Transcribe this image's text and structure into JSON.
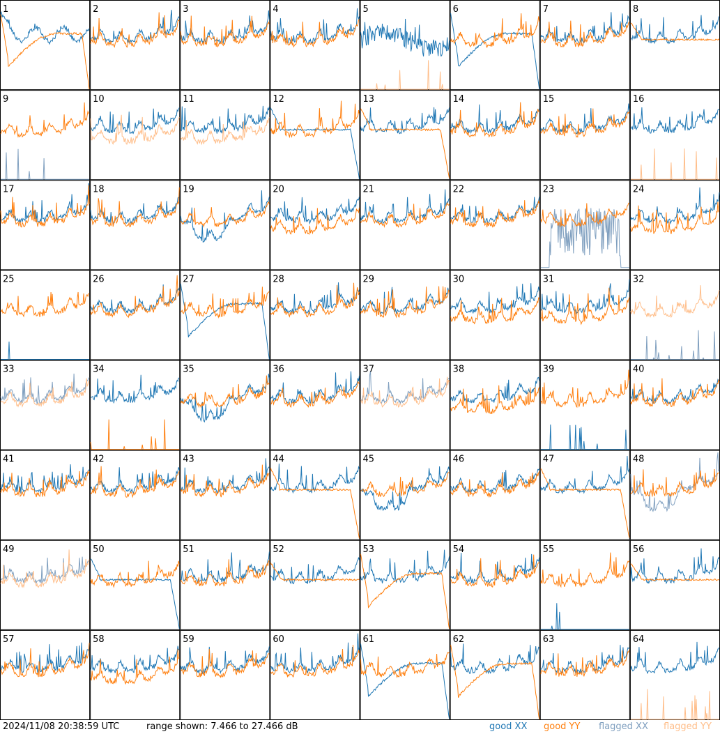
{
  "footer": {
    "timestamp": "2024/11/08 20:38:59 UTC",
    "range_text": "range shown: 7.466 to 27.466 dB",
    "legend": {
      "good_xx": "good XX",
      "good_yy": "good YY",
      "flagged_xx": "flagged XX",
      "flagged_yy": "flagged YY"
    }
  },
  "colors": {
    "good_xx": "#1f77b4",
    "good_yy": "#ff7f0e",
    "flagged_xx": "#7f9fbf",
    "flagged_yy": "#ffbe8a",
    "border": "#000000"
  },
  "chart_data": {
    "type": "line",
    "layout": "small-multiples 8x8",
    "ylim_db": [
      7.466,
      27.466
    ],
    "panels": [
      {
        "label": "1",
        "xx": "good",
        "yy": "good",
        "xx_shape": "plateau_high",
        "yy_shape": "dip_rolloff"
      },
      {
        "label": "2",
        "xx": "good",
        "yy": "good",
        "xx_shape": "normal",
        "yy_shape": "normal"
      },
      {
        "label": "3",
        "xx": "good",
        "yy": "good",
        "xx_shape": "normal",
        "yy_shape": "normal"
      },
      {
        "label": "4",
        "xx": "good",
        "yy": "good",
        "xx_shape": "normal",
        "yy_shape": "normal"
      },
      {
        "label": "5",
        "xx": "good",
        "yy": "flagged",
        "xx_shape": "low_noisy",
        "yy_shape": "spikes"
      },
      {
        "label": "6",
        "xx": "good",
        "yy": "good",
        "xx_shape": "dip_rolloff",
        "yy_shape": "normal"
      },
      {
        "label": "7",
        "xx": "good",
        "yy": "good",
        "xx_shape": "normal",
        "yy_shape": "normal"
      },
      {
        "label": "8",
        "xx": "good",
        "yy": "good",
        "xx_shape": "normal",
        "yy_shape": "plateau"
      },
      {
        "label": "9",
        "xx": "flagged",
        "yy": "good",
        "xx_shape": "spikes",
        "yy_shape": "normal"
      },
      {
        "label": "10",
        "xx": "good",
        "yy": "flagged",
        "xx_shape": "normal",
        "yy_shape": "low"
      },
      {
        "label": "11",
        "xx": "good",
        "yy": "flagged",
        "xx_shape": "normal",
        "yy_shape": "low"
      },
      {
        "label": "12",
        "xx": "good",
        "yy": "good",
        "xx_shape": "plateau_rolloff",
        "yy_shape": "normal"
      },
      {
        "label": "13",
        "xx": "good",
        "yy": "good",
        "xx_shape": "normal",
        "yy_shape": "plateau_rolloff"
      },
      {
        "label": "14",
        "xx": "good",
        "yy": "good",
        "xx_shape": "normal",
        "yy_shape": "normal"
      },
      {
        "label": "15",
        "xx": "good",
        "yy": "good",
        "xx_shape": "normal",
        "yy_shape": "normal"
      },
      {
        "label": "16",
        "xx": "good",
        "yy": "flagged",
        "xx_shape": "normal",
        "yy_shape": "spikes"
      },
      {
        "label": "17",
        "xx": "good",
        "yy": "good",
        "xx_shape": "normal",
        "yy_shape": "normal"
      },
      {
        "label": "18",
        "xx": "good",
        "yy": "good",
        "xx_shape": "normal",
        "yy_shape": "normal"
      },
      {
        "label": "19",
        "xx": "good",
        "yy": "good",
        "xx_shape": "dip",
        "yy_shape": "normal"
      },
      {
        "label": "20",
        "xx": "good",
        "yy": "good",
        "xx_shape": "normal",
        "yy_shape": "low"
      },
      {
        "label": "21",
        "xx": "good",
        "yy": "good",
        "xx_shape": "normal",
        "yy_shape": "normal"
      },
      {
        "label": "22",
        "xx": "good",
        "yy": "good",
        "xx_shape": "normal",
        "yy_shape": "normal"
      },
      {
        "label": "23",
        "xx": "flagged",
        "yy": "good",
        "xx_shape": "noise_block",
        "yy_shape": "normal"
      },
      {
        "label": "24",
        "xx": "good",
        "yy": "good",
        "xx_shape": "normal",
        "yy_shape": "low"
      },
      {
        "label": "25",
        "xx": "good",
        "yy": "good",
        "xx_shape": "spike",
        "yy_shape": "normal"
      },
      {
        "label": "26",
        "xx": "good",
        "yy": "good",
        "xx_shape": "normal",
        "yy_shape": "normal"
      },
      {
        "label": "27",
        "xx": "good",
        "yy": "good",
        "xx_shape": "dip_rolloff",
        "yy_shape": "normal"
      },
      {
        "label": "28",
        "xx": "good",
        "yy": "good",
        "xx_shape": "normal",
        "yy_shape": "normal"
      },
      {
        "label": "29",
        "xx": "good",
        "yy": "good",
        "xx_shape": "normal",
        "yy_shape": "normal"
      },
      {
        "label": "30",
        "xx": "good",
        "yy": "good",
        "xx_shape": "normal",
        "yy_shape": "low"
      },
      {
        "label": "31",
        "xx": "good",
        "yy": "good",
        "xx_shape": "normal",
        "yy_shape": "low"
      },
      {
        "label": "32",
        "xx": "flagged",
        "yy": "flagged",
        "xx_shape": "spikes",
        "yy_shape": "normal"
      },
      {
        "label": "33",
        "xx": "flagged",
        "yy": "flagged",
        "xx_shape": "normal",
        "yy_shape": "normal"
      },
      {
        "label": "34",
        "xx": "good",
        "yy": "good",
        "xx_shape": "normal",
        "yy_shape": "spikes"
      },
      {
        "label": "35",
        "xx": "good",
        "yy": "good",
        "xx_shape": "dip",
        "yy_shape": "normal"
      },
      {
        "label": "36",
        "xx": "good",
        "yy": "good",
        "xx_shape": "normal",
        "yy_shape": "normal"
      },
      {
        "label": "37",
        "xx": "flagged",
        "yy": "flagged",
        "xx_shape": "normal",
        "yy_shape": "normal"
      },
      {
        "label": "38",
        "xx": "good",
        "yy": "good",
        "xx_shape": "normal",
        "yy_shape": "low"
      },
      {
        "label": "39",
        "xx": "good",
        "yy": "good",
        "xx_shape": "spikes",
        "yy_shape": "normal"
      },
      {
        "label": "40",
        "xx": "good",
        "yy": "good",
        "xx_shape": "normal",
        "yy_shape": "normal"
      },
      {
        "label": "41",
        "xx": "good",
        "yy": "good",
        "xx_shape": "normal",
        "yy_shape": "normal"
      },
      {
        "label": "42",
        "xx": "good",
        "yy": "good",
        "xx_shape": "normal",
        "yy_shape": "normal"
      },
      {
        "label": "43",
        "xx": "good",
        "yy": "good",
        "xx_shape": "normal",
        "yy_shape": "normal"
      },
      {
        "label": "44",
        "xx": "good",
        "yy": "good",
        "xx_shape": "normal",
        "yy_shape": "plateau_rolloff"
      },
      {
        "label": "45",
        "xx": "good",
        "yy": "good",
        "xx_shape": "dip",
        "yy_shape": "normal"
      },
      {
        "label": "46",
        "xx": "good",
        "yy": "good",
        "xx_shape": "normal",
        "yy_shape": "normal"
      },
      {
        "label": "47",
        "xx": "good",
        "yy": "good",
        "xx_shape": "normal",
        "yy_shape": "plateau_rolloff"
      },
      {
        "label": "48",
        "xx": "flagged",
        "yy": "good",
        "xx_shape": "dip",
        "yy_shape": "normal"
      },
      {
        "label": "49",
        "xx": "flagged",
        "yy": "flagged",
        "xx_shape": "normal",
        "yy_shape": "normal"
      },
      {
        "label": "50",
        "xx": "good",
        "yy": "good",
        "xx_shape": "plateau_rolloff",
        "yy_shape": "normal"
      },
      {
        "label": "51",
        "xx": "good",
        "yy": "good",
        "xx_shape": "normal",
        "yy_shape": "normal"
      },
      {
        "label": "52",
        "xx": "good",
        "yy": "good",
        "xx_shape": "normal",
        "yy_shape": "plateau"
      },
      {
        "label": "53",
        "xx": "good",
        "yy": "good",
        "xx_shape": "normal",
        "yy_shape": "dip_rolloff"
      },
      {
        "label": "54",
        "xx": "good",
        "yy": "good",
        "xx_shape": "normal",
        "yy_shape": "normal"
      },
      {
        "label": "55",
        "xx": "good",
        "yy": "good",
        "xx_shape": "spikes",
        "yy_shape": "normal"
      },
      {
        "label": "56",
        "xx": "good",
        "yy": "good",
        "xx_shape": "normal",
        "yy_shape": "plateau"
      },
      {
        "label": "57",
        "xx": "good",
        "yy": "good",
        "xx_shape": "normal",
        "yy_shape": "normal"
      },
      {
        "label": "58",
        "xx": "good",
        "yy": "good",
        "xx_shape": "normal",
        "yy_shape": "low"
      },
      {
        "label": "59",
        "xx": "good",
        "yy": "good",
        "xx_shape": "normal",
        "yy_shape": "normal"
      },
      {
        "label": "60",
        "xx": "good",
        "yy": "good",
        "xx_shape": "normal",
        "yy_shape": "normal"
      },
      {
        "label": "61",
        "xx": "good",
        "yy": "good",
        "xx_shape": "dip_rolloff",
        "yy_shape": "normal"
      },
      {
        "label": "62",
        "xx": "good",
        "yy": "good",
        "xx_shape": "normal",
        "yy_shape": "dip_rolloff"
      },
      {
        "label": "63",
        "xx": "good",
        "yy": "good",
        "xx_shape": "normal",
        "yy_shape": "normal"
      },
      {
        "label": "64",
        "xx": "good",
        "yy": "flagged",
        "xx_shape": "normal",
        "yy_shape": "spikes"
      }
    ]
  }
}
